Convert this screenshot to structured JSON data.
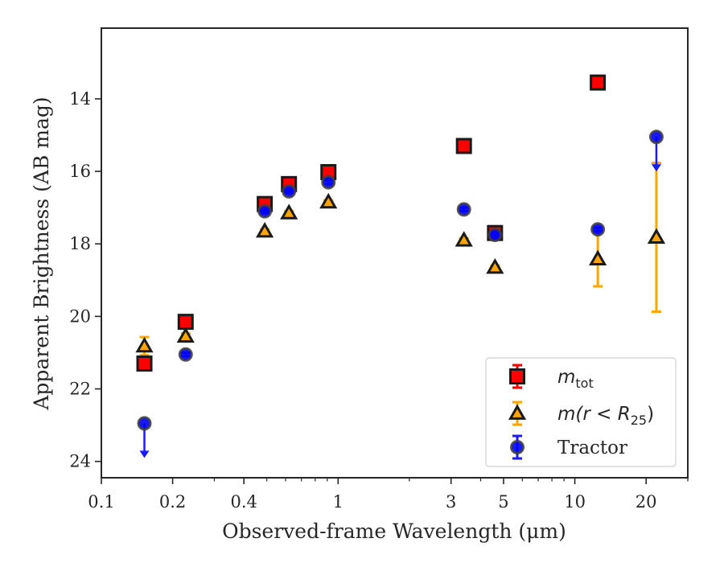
{
  "chart_data": {
    "type": "scatter",
    "xlabel": "Observed-frame Wavelength (μm)",
    "ylabel": "Apparent Brightness (AB mag)",
    "xscale": "log",
    "xlim": [
      0.1,
      30
    ],
    "ylim": [
      24.45,
      12.05
    ],
    "y_inverted": true,
    "x_ticks": [
      {
        "value": 0.1,
        "label": "0.1"
      },
      {
        "value": 0.2,
        "label": "0.2"
      },
      {
        "value": 0.4,
        "label": "0.4"
      },
      {
        "value": 1,
        "label": "1"
      },
      {
        "value": 3,
        "label": "3"
      },
      {
        "value": 5,
        "label": "5"
      },
      {
        "value": 10,
        "label": "10"
      },
      {
        "value": 20,
        "label": "20"
      }
    ],
    "y_ticks": [
      {
        "value": 14,
        "label": "14"
      },
      {
        "value": 16,
        "label": "16"
      },
      {
        "value": 18,
        "label": "18"
      },
      {
        "value": 20,
        "label": "20"
      },
      {
        "value": 22,
        "label": "22"
      },
      {
        "value": 24,
        "label": "24"
      }
    ],
    "grid": false,
    "legend_position": "lower-right",
    "series": [
      {
        "name": "m_tot",
        "legend": {
          "main": "m",
          "sub": "tot",
          "suffix": ""
        },
        "marker": "square",
        "face_color": "#ff0000",
        "edge_color": "#1a1a1a",
        "error_color": "#ff0000",
        "points": [
          {
            "x": 0.152,
            "y": 21.3,
            "err": 0.05
          },
          {
            "x": 0.227,
            "y": 20.15,
            "err": 0.05
          },
          {
            "x": 0.49,
            "y": 16.9,
            "err": 0.05
          },
          {
            "x": 0.62,
            "y": 16.35,
            "err": 0.05
          },
          {
            "x": 0.91,
            "y": 16.02,
            "err": 0.05
          },
          {
            "x": 3.4,
            "y": 15.3,
            "err": 0.05
          },
          {
            "x": 4.6,
            "y": 17.7,
            "err": 0.05
          },
          {
            "x": 12.5,
            "y": 13.55,
            "err": 0.05
          }
        ]
      },
      {
        "name": "m(r<R25)",
        "legend": {
          "main": "m(r < R",
          "sub": "25",
          "suffix": ")"
        },
        "marker": "triangle",
        "face_color": "#ffa500",
        "edge_color": "#1a1a1a",
        "error_color": "#ffa500",
        "points": [
          {
            "x": 0.152,
            "y": 20.82,
            "err": 0.25
          },
          {
            "x": 0.227,
            "y": 20.55,
            "err": 0.08
          },
          {
            "x": 0.49,
            "y": 17.65,
            "err": 0.05
          },
          {
            "x": 0.62,
            "y": 17.15,
            "err": 0.05
          },
          {
            "x": 0.91,
            "y": 16.85,
            "err": 0.05
          },
          {
            "x": 3.4,
            "y": 17.9,
            "err": 0.05
          },
          {
            "x": 4.6,
            "y": 18.65,
            "err": 0.05
          },
          {
            "x": 12.5,
            "y": 18.42,
            "err": 0.75
          },
          {
            "x": 22.1,
            "y": 17.82,
            "err": 2.05
          }
        ]
      },
      {
        "name": "Tractor",
        "legend": {
          "main": "Tractor",
          "sub": "",
          "suffix": ""
        },
        "marker": "circle",
        "face_color": "#0000ff",
        "edge_color": "#404040",
        "error_color": "#1a1aff",
        "points": [
          {
            "x": 0.152,
            "y": 22.95,
            "upper_limit": true
          },
          {
            "x": 0.227,
            "y": 21.05,
            "err": 0.05
          },
          {
            "x": 0.49,
            "y": 17.1,
            "err": 0.05
          },
          {
            "x": 0.62,
            "y": 16.55,
            "err": 0.05
          },
          {
            "x": 0.91,
            "y": 16.3,
            "err": 0.05
          },
          {
            "x": 3.4,
            "y": 17.05,
            "err": 0.05
          },
          {
            "x": 4.6,
            "y": 17.75,
            "err": 0.05
          },
          {
            "x": 12.5,
            "y": 17.6,
            "err": 0.05
          },
          {
            "x": 22.1,
            "y": 15.05,
            "upper_limit": true
          }
        ]
      }
    ]
  }
}
